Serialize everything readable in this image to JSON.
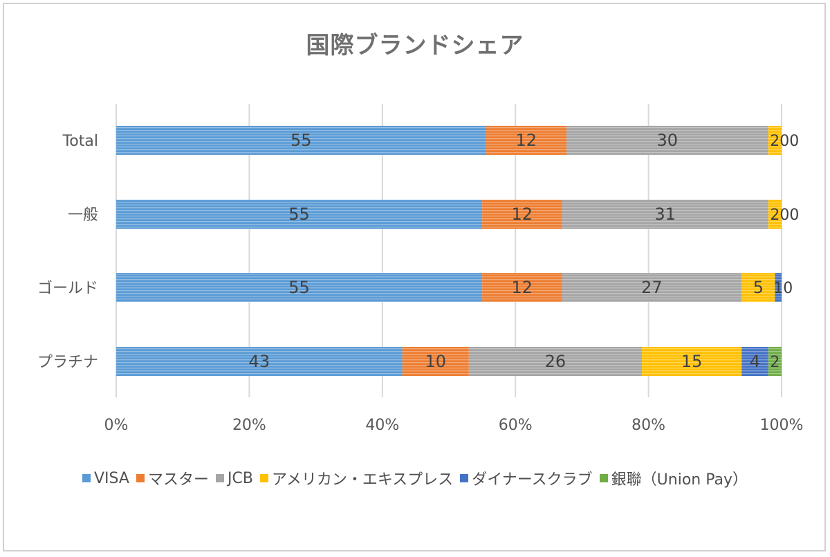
{
  "chart_data": {
    "type": "bar",
    "orientation": "horizontal",
    "stacked": "percent",
    "title": "国際ブランドシェア",
    "categories": [
      "Total",
      "一般",
      "ゴールド",
      "プラチナ"
    ],
    "series": [
      {
        "name": "VISA",
        "color": "#5b9bd5",
        "values": [
          55,
          55,
          55,
          43
        ]
      },
      {
        "name": "マスター",
        "color": "#ed7d31",
        "values": [
          12,
          12,
          12,
          10
        ]
      },
      {
        "name": "JCB",
        "color": "#a5a5a5",
        "values": [
          30,
          31,
          27,
          26
        ]
      },
      {
        "name": "アメリカン・エキスプレス",
        "color": "#ffc000",
        "values": [
          2,
          2,
          5,
          15
        ]
      },
      {
        "name": "ダイナースクラブ",
        "color": "#4472c4",
        "values": [
          0,
          0,
          1,
          4
        ]
      },
      {
        "name": "銀聯（Union Pay）",
        "color": "#70ad47",
        "values": [
          0,
          0,
          0,
          2
        ]
      }
    ],
    "x_ticks": [
      "0%",
      "20%",
      "40%",
      "60%",
      "80%",
      "100%"
    ],
    "xlim": [
      0,
      100
    ],
    "grid": true,
    "legend_position": "bottom"
  }
}
